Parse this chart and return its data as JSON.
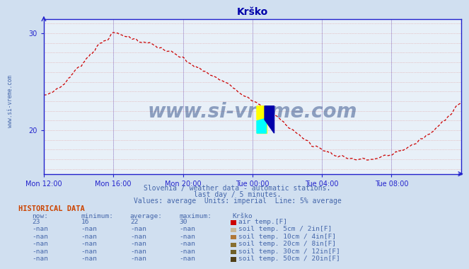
{
  "title": "Krško",
  "bg_color": "#d0dff0",
  "plot_bg_color": "#e8f0f8",
  "line_color": "#cc0000",
  "grid_color": "#c8b8b8",
  "grid_color2": "#d0c8e0",
  "axis_color": "#2222cc",
  "title_color": "#0000aa",
  "text_color": "#4466aa",
  "watermark": "www.si-vreme.com",
  "watermark_color": "#1a3a7a",
  "subtitle1": "Slovenia / weather data - automatic stations.",
  "subtitle2": "last day / 5 minutes.",
  "subtitle3": "Values: average  Units: imperial  Line: 5% average",
  "xlim": [
    0,
    288
  ],
  "ylim": [
    15.5,
    31.5
  ],
  "yticks": [
    20,
    30
  ],
  "xtick_labels": [
    "Mon 12:00",
    "Mon 16:00",
    "Mon 20:00",
    "Tue 00:00",
    "Tue 04:00",
    "Tue 08:00"
  ],
  "xtick_positions": [
    0,
    48,
    96,
    144,
    192,
    240
  ],
  "hist_title": "HISTORICAL DATA",
  "hist_headers": [
    "now:",
    "minimum:",
    "average:",
    "maximum:",
    "Krško"
  ],
  "hist_row1": [
    "23",
    "16",
    "22",
    "30",
    "air temp.[F]"
  ],
  "hist_row2": [
    "-nan",
    "-nan",
    "-nan",
    "-nan",
    "soil temp. 5cm / 2in[F]"
  ],
  "hist_row3": [
    "-nan",
    "-nan",
    "-nan",
    "-nan",
    "soil temp. 10cm / 4in[F]"
  ],
  "hist_row4": [
    "-nan",
    "-nan",
    "-nan",
    "-nan",
    "soil temp. 20cm / 8in[F]"
  ],
  "hist_row5": [
    "-nan",
    "-nan",
    "-nan",
    "-nan",
    "soil temp. 30cm / 12in[F]"
  ],
  "hist_row6": [
    "-nan",
    "-nan",
    "-nan",
    "-nan",
    "soil temp. 50cm / 20in[F]"
  ],
  "legend_colors": [
    "#cc0000",
    "#c8b898",
    "#b07838",
    "#887030",
    "#706028",
    "#504018"
  ],
  "logo_yellow": "#ffff00",
  "logo_cyan": "#00ffff",
  "logo_blue": "#0000aa",
  "keypoints_x": [
    0,
    12,
    24,
    36,
    48,
    55,
    65,
    75,
    85,
    95,
    105,
    118,
    130,
    140,
    152,
    160,
    172,
    185,
    200,
    215,
    228,
    240,
    255,
    270,
    288
  ],
  "keypoints_y": [
    23.5,
    24.5,
    26.5,
    28.5,
    30.0,
    29.8,
    29.3,
    28.8,
    28.2,
    27.5,
    26.5,
    25.5,
    24.5,
    23.5,
    22.5,
    21.5,
    20.0,
    18.5,
    17.5,
    17.0,
    17.0,
    17.5,
    18.5,
    20.0,
    23.0
  ],
  "noise_seed": 7
}
